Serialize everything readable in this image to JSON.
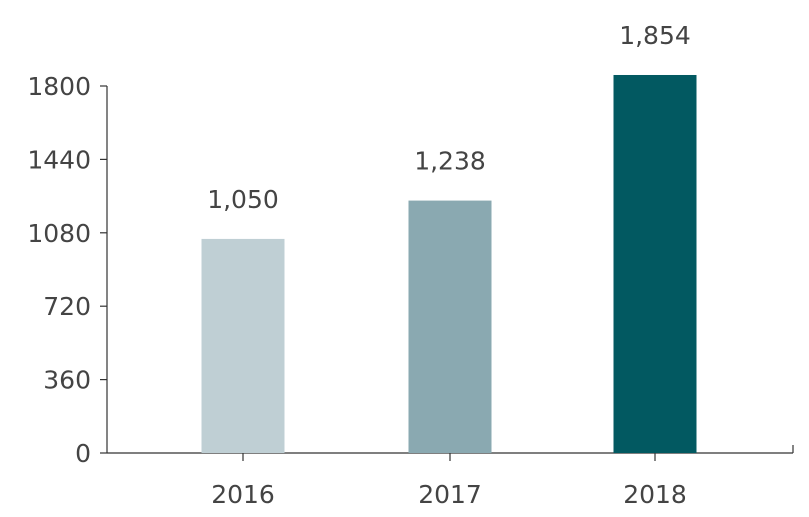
{
  "chart_data": {
    "type": "bar",
    "categories": [
      "2016",
      "2017",
      "2018"
    ],
    "values": [
      1050,
      1238,
      1854
    ],
    "value_labels": [
      "1,050",
      "1,238",
      "1,854"
    ],
    "bar_colors": [
      "#bfcfd4",
      "#8aa9b1",
      "#025961"
    ],
    "title": "",
    "xlabel": "",
    "ylabel": "",
    "ylim": [
      0,
      1800
    ],
    "yticks": [
      0,
      360,
      720,
      1080,
      1440,
      1800
    ],
    "ytick_labels": [
      "0",
      "360",
      "720",
      "1080",
      "1440",
      "1800"
    ],
    "grid": false,
    "legend": "none"
  }
}
